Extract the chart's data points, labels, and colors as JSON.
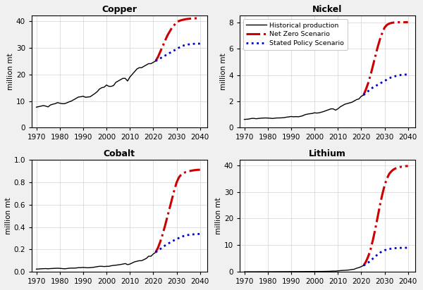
{
  "titles": [
    "Copper",
    "Nickel",
    "Cobalt",
    "Lithium"
  ],
  "ylabel": "million mt",
  "xlim": [
    1968,
    2043
  ],
  "xticks": [
    1970,
    1980,
    1990,
    2000,
    2010,
    2020,
    2030,
    2040
  ],
  "copper": {
    "hist_x": [
      1970,
      1971,
      1972,
      1973,
      1974,
      1975,
      1976,
      1977,
      1978,
      1979,
      1980,
      1981,
      1982,
      1983,
      1984,
      1985,
      1986,
      1987,
      1988,
      1989,
      1990,
      1991,
      1992,
      1993,
      1994,
      1995,
      1996,
      1997,
      1998,
      1999,
      2000,
      2001,
      2002,
      2003,
      2004,
      2005,
      2006,
      2007,
      2008,
      2009,
      2010,
      2011,
      2012,
      2013,
      2014,
      2015,
      2016,
      2017,
      2018,
      2019,
      2020,
      2021
    ],
    "hist_y": [
      7.7,
      7.9,
      8.1,
      8.3,
      8.1,
      7.8,
      8.5,
      8.8,
      9.0,
      9.4,
      9.2,
      9.0,
      9.0,
      9.3,
      9.7,
      10.0,
      10.5,
      11.0,
      11.5,
      11.6,
      11.8,
      11.4,
      11.5,
      11.6,
      12.2,
      12.8,
      13.5,
      14.5,
      15.0,
      15.2,
      16.0,
      15.5,
      15.5,
      15.8,
      17.0,
      17.5,
      18.0,
      18.5,
      18.5,
      17.5,
      19.0,
      20.0,
      21.0,
      22.0,
      22.5,
      22.5,
      23.0,
      23.5,
      24.0,
      24.0,
      24.5,
      25.0
    ],
    "nz_x": [
      2021,
      2022,
      2023,
      2024,
      2025,
      2026,
      2027,
      2028,
      2029,
      2030,
      2031,
      2032,
      2033,
      2034,
      2035,
      2036,
      2037,
      2038,
      2039,
      2040
    ],
    "nz_y": [
      25.0,
      26.5,
      28.5,
      30.5,
      32.5,
      34.5,
      36.0,
      37.5,
      38.5,
      39.5,
      40.0,
      40.3,
      40.5,
      40.7,
      40.8,
      40.9,
      41.0,
      41.0,
      41.0,
      41.0
    ],
    "sp_x": [
      2021,
      2022,
      2023,
      2024,
      2025,
      2026,
      2027,
      2028,
      2029,
      2030,
      2031,
      2032,
      2033,
      2034,
      2035,
      2036,
      2037,
      2038,
      2039,
      2040
    ],
    "sp_y": [
      25.0,
      25.5,
      26.0,
      26.5,
      27.0,
      27.5,
      28.0,
      28.5,
      29.0,
      29.5,
      30.0,
      30.5,
      30.8,
      31.0,
      31.2,
      31.3,
      31.4,
      31.5,
      31.5,
      31.5
    ],
    "ylim": [
      0,
      42
    ],
    "yticks": [
      0,
      10,
      20,
      30,
      40
    ]
  },
  "nickel": {
    "hist_x": [
      1970,
      1971,
      1972,
      1973,
      1974,
      1975,
      1976,
      1977,
      1978,
      1979,
      1980,
      1981,
      1982,
      1983,
      1984,
      1985,
      1986,
      1987,
      1988,
      1989,
      1990,
      1991,
      1992,
      1993,
      1994,
      1995,
      1996,
      1997,
      1998,
      1999,
      2000,
      2001,
      2002,
      2003,
      2004,
      2005,
      2006,
      2007,
      2008,
      2009,
      2010,
      2011,
      2012,
      2013,
      2014,
      2015,
      2016,
      2017,
      2018,
      2019,
      2020,
      2021
    ],
    "hist_y": [
      0.63,
      0.64,
      0.66,
      0.7,
      0.71,
      0.68,
      0.7,
      0.72,
      0.73,
      0.74,
      0.73,
      0.72,
      0.7,
      0.72,
      0.74,
      0.74,
      0.75,
      0.76,
      0.8,
      0.82,
      0.85,
      0.83,
      0.84,
      0.83,
      0.86,
      0.91,
      0.99,
      1.03,
      1.06,
      1.08,
      1.13,
      1.11,
      1.13,
      1.18,
      1.23,
      1.3,
      1.36,
      1.43,
      1.43,
      1.33,
      1.43,
      1.58,
      1.68,
      1.78,
      1.83,
      1.88,
      1.93,
      2.03,
      2.13,
      2.18,
      2.38,
      2.48
    ],
    "nz_x": [
      2021,
      2022,
      2023,
      2024,
      2025,
      2026,
      2027,
      2028,
      2029,
      2030,
      2031,
      2032,
      2033,
      2034,
      2035,
      2036,
      2037,
      2038,
      2039,
      2040
    ],
    "nz_y": [
      2.48,
      2.9,
      3.4,
      4.0,
      4.7,
      5.4,
      6.1,
      6.7,
      7.2,
      7.6,
      7.8,
      7.9,
      7.95,
      7.98,
      8.0,
      8.0,
      8.0,
      8.0,
      8.0,
      8.0
    ],
    "sp_x": [
      2021,
      2022,
      2023,
      2024,
      2025,
      2026,
      2027,
      2028,
      2029,
      2030,
      2031,
      2032,
      2033,
      2034,
      2035,
      2036,
      2037,
      2038,
      2039,
      2040
    ],
    "sp_y": [
      2.48,
      2.63,
      2.78,
      2.93,
      3.05,
      3.15,
      3.25,
      3.35,
      3.45,
      3.55,
      3.65,
      3.75,
      3.83,
      3.88,
      3.93,
      3.97,
      4.0,
      4.02,
      4.03,
      4.04
    ],
    "ylim": [
      0,
      8.5
    ],
    "yticks": [
      0,
      2,
      4,
      6,
      8
    ]
  },
  "cobalt": {
    "hist_x": [
      1970,
      1971,
      1972,
      1973,
      1974,
      1975,
      1976,
      1977,
      1978,
      1979,
      1980,
      1981,
      1982,
      1983,
      1984,
      1985,
      1986,
      1987,
      1988,
      1989,
      1990,
      1991,
      1992,
      1993,
      1994,
      1995,
      1996,
      1997,
      1998,
      1999,
      2000,
      2001,
      2002,
      2003,
      2004,
      2005,
      2006,
      2007,
      2008,
      2009,
      2010,
      2011,
      2012,
      2013,
      2014,
      2015,
      2016,
      2017,
      2018,
      2019,
      2020,
      2021
    ],
    "hist_y": [
      0.025,
      0.026,
      0.028,
      0.029,
      0.03,
      0.028,
      0.03,
      0.031,
      0.032,
      0.033,
      0.032,
      0.03,
      0.028,
      0.03,
      0.033,
      0.034,
      0.034,
      0.035,
      0.038,
      0.038,
      0.04,
      0.038,
      0.037,
      0.038,
      0.04,
      0.043,
      0.047,
      0.05,
      0.05,
      0.048,
      0.05,
      0.05,
      0.055,
      0.058,
      0.06,
      0.063,
      0.066,
      0.07,
      0.075,
      0.065,
      0.07,
      0.08,
      0.09,
      0.095,
      0.1,
      0.1,
      0.11,
      0.12,
      0.14,
      0.14,
      0.16,
      0.175
    ],
    "nz_x": [
      2021,
      2022,
      2023,
      2024,
      2025,
      2026,
      2027,
      2028,
      2029,
      2030,
      2031,
      2032,
      2033,
      2034,
      2035,
      2036,
      2037,
      2038,
      2039,
      2040
    ],
    "nz_y": [
      0.175,
      0.215,
      0.27,
      0.335,
      0.41,
      0.49,
      0.57,
      0.65,
      0.73,
      0.8,
      0.845,
      0.87,
      0.883,
      0.892,
      0.898,
      0.902,
      0.906,
      0.909,
      0.911,
      0.912
    ],
    "sp_x": [
      2021,
      2022,
      2023,
      2024,
      2025,
      2026,
      2027,
      2028,
      2029,
      2030,
      2031,
      2032,
      2033,
      2034,
      2035,
      2036,
      2037,
      2038,
      2039,
      2040
    ],
    "sp_y": [
      0.175,
      0.19,
      0.205,
      0.22,
      0.235,
      0.248,
      0.26,
      0.273,
      0.283,
      0.293,
      0.303,
      0.313,
      0.32,
      0.326,
      0.33,
      0.333,
      0.335,
      0.337,
      0.338,
      0.339
    ],
    "ylim": [
      0,
      1.0
    ],
    "yticks": [
      0,
      0.2,
      0.4,
      0.6,
      0.8,
      1.0
    ]
  },
  "lithium": {
    "hist_x": [
      1970,
      1971,
      1972,
      1973,
      1974,
      1975,
      1976,
      1977,
      1978,
      1979,
      1980,
      1981,
      1982,
      1983,
      1984,
      1985,
      1986,
      1987,
      1988,
      1989,
      1990,
      1991,
      1992,
      1993,
      1994,
      1995,
      1996,
      1997,
      1998,
      1999,
      2000,
      2001,
      2002,
      2003,
      2004,
      2005,
      2006,
      2007,
      2008,
      2009,
      2010,
      2011,
      2012,
      2013,
      2014,
      2015,
      2016,
      2017,
      2018,
      2019,
      2020,
      2021
    ],
    "hist_y": [
      0.05,
      0.05,
      0.06,
      0.06,
      0.06,
      0.06,
      0.07,
      0.07,
      0.07,
      0.08,
      0.08,
      0.08,
      0.08,
      0.09,
      0.09,
      0.1,
      0.1,
      0.1,
      0.11,
      0.11,
      0.12,
      0.12,
      0.12,
      0.12,
      0.13,
      0.13,
      0.14,
      0.14,
      0.15,
      0.15,
      0.17,
      0.17,
      0.18,
      0.18,
      0.2,
      0.21,
      0.24,
      0.26,
      0.33,
      0.3,
      0.4,
      0.5,
      0.55,
      0.6,
      0.65,
      0.75,
      0.9,
      1.0,
      1.4,
      1.6,
      2.0,
      2.4
    ],
    "nz_x": [
      2021,
      2022,
      2023,
      2024,
      2025,
      2026,
      2027,
      2028,
      2029,
      2030,
      2031,
      2032,
      2033,
      2034,
      2035,
      2036,
      2037,
      2038,
      2039,
      2040
    ],
    "nz_y": [
      2.4,
      3.8,
      5.8,
      8.5,
      12.0,
      16.0,
      20.5,
      25.0,
      29.0,
      32.5,
      35.0,
      36.8,
      37.8,
      38.5,
      38.9,
      39.2,
      39.4,
      39.55,
      39.65,
      39.7
    ],
    "sp_x": [
      2021,
      2022,
      2023,
      2024,
      2025,
      2026,
      2027,
      2028,
      2029,
      2030,
      2031,
      2032,
      2033,
      2034,
      2035,
      2036,
      2037,
      2038,
      2039,
      2040
    ],
    "sp_y": [
      2.4,
      2.9,
      3.5,
      4.2,
      5.0,
      5.8,
      6.5,
      7.2,
      7.7,
      8.1,
      8.4,
      8.6,
      8.75,
      8.85,
      8.92,
      8.97,
      9.0,
      9.02,
      9.04,
      9.05
    ],
    "ylim": [
      0,
      42
    ],
    "yticks": [
      0,
      10,
      20,
      30,
      40
    ]
  },
  "hist_color": "#000000",
  "nz_color": "#cc0000",
  "sp_color": "#0000cc",
  "legend_labels": [
    "Historical production",
    "Net Zero Scenario",
    "Stated Policy Scenario"
  ],
  "bg_color": "#ffffff",
  "grid_color": "#d3d3d3",
  "fig_bg": "#f0f0f0"
}
